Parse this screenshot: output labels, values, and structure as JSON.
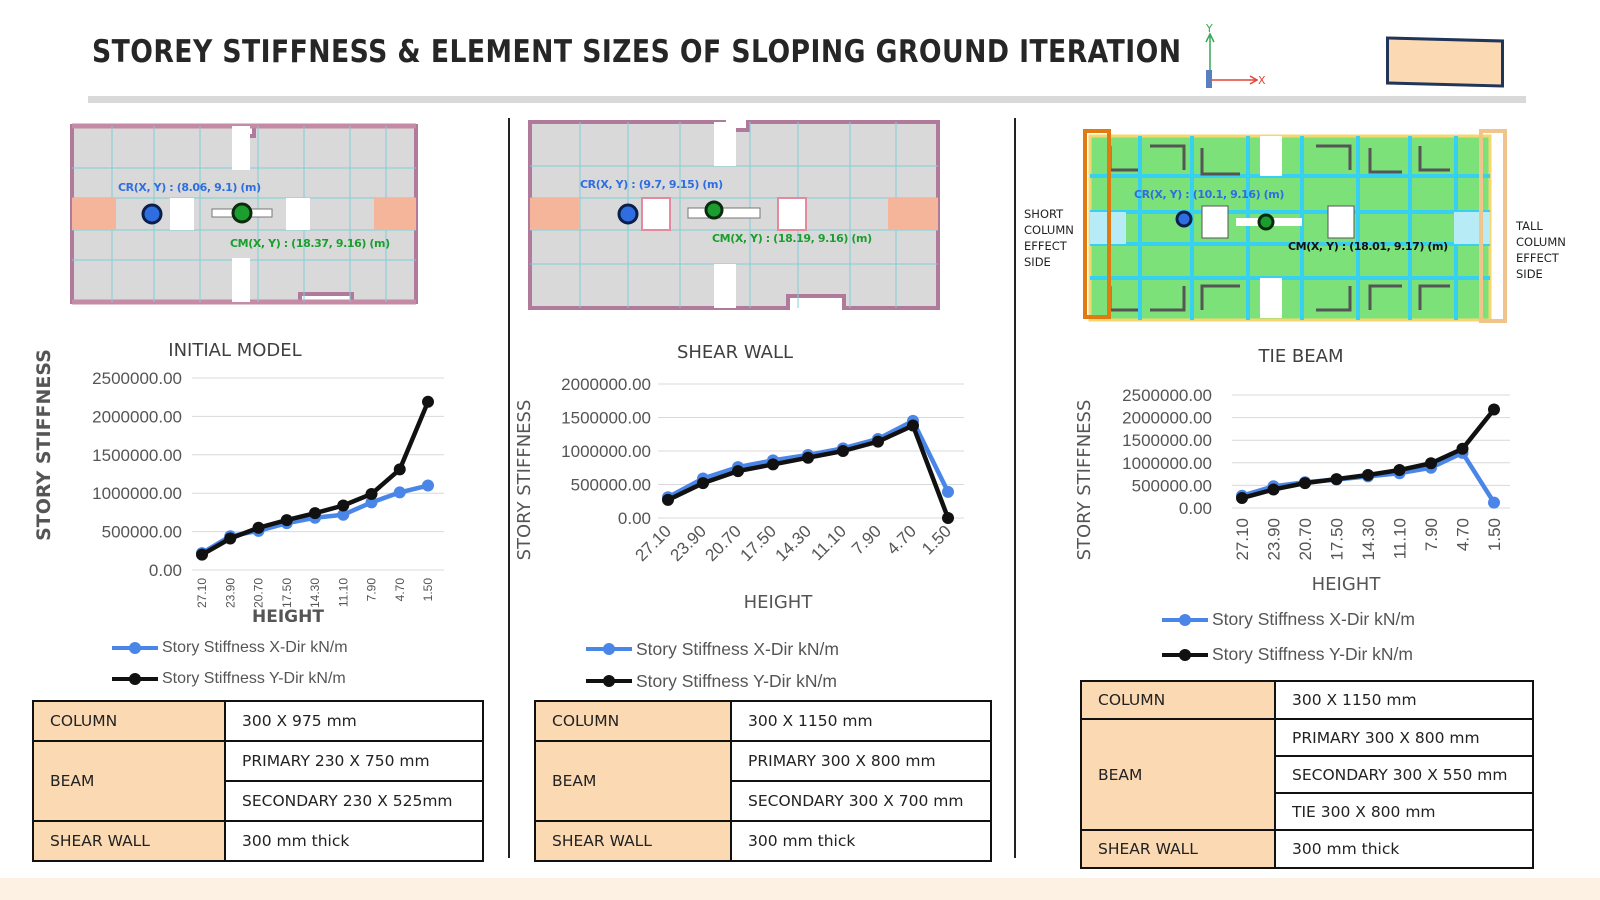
{
  "title": "STOREY STIFFNESS & ELEMENT SIZES OF SLOPING GROUND ITERATION",
  "axis_icon": {
    "y": "Y",
    "x": "X"
  },
  "colors": {
    "x_series": "#4a86e8",
    "y_series": "#111111",
    "key_cell": "#fad9b3",
    "legend_box": "#fad9b3",
    "cr_marker": "#2f6ee0",
    "cm_marker": "#1b9e2e"
  },
  "panels": [
    {
      "chart_title": "INITIAL MODEL",
      "cr_text": "CR(X, Y) : (8.06, 9.1) (m)",
      "cm_text": "CM(X, Y) : (18.37, 9.16) (m)",
      "ylabel": "STORY STIFFNESS",
      "xlabel": "HEIGHT",
      "legend": [
        "Story Stiffness X-Dir kN/m",
        "Story Stiffness Y-Dir kN/m"
      ],
      "table": {
        "column_key": "COLUMN",
        "column_val": "300 X 975 mm",
        "beam_key": "BEAM",
        "beam_vals": [
          "PRIMARY 230 X 750 mm",
          "SECONDARY 230 X 525mm"
        ],
        "wall_key": "SHEAR WALL",
        "wall_val": "300 mm thick"
      }
    },
    {
      "chart_title": "SHEAR WALL",
      "cr_text": "CR(X, Y) : (9.7, 9.15) (m)",
      "cm_text": "CM(X, Y) : (18.19, 9.16) (m)",
      "ylabel": "STORY STIFFNESS",
      "xlabel": "HEIGHT",
      "legend": [
        "Story Stiffness X-Dir kN/m",
        "Story Stiffness Y-Dir kN/m"
      ],
      "table": {
        "column_key": "COLUMN",
        "column_val": "300 X 1150 mm",
        "beam_key": "BEAM",
        "beam_vals": [
          "PRIMARY 300 X 800 mm",
          "SECONDARY 300 X 700 mm"
        ],
        "wall_key": "SHEAR WALL",
        "wall_val": "300 mm thick"
      }
    },
    {
      "chart_title": "TIE BEAM",
      "cr_text": "CR(X, Y) : (10.1, 9.16) (m)",
      "cm_text": "CM(X, Y) : (18.01, 9.17) (m)",
      "left_note": "SHORT COLUMN EFFECT SIDE",
      "right_note": "TALL COLUMN EFFECT SIDE",
      "ylabel": "STORY STIFFNESS",
      "xlabel": "HEIGHT",
      "legend": [
        "Story Stiffness X-Dir kN/m",
        "Story Stiffness Y-Dir kN/m"
      ],
      "table": {
        "column_key": "COLUMN",
        "column_val": "300 X 1150 mm",
        "beam_key": "BEAM",
        "beam_vals": [
          "PRIMARY 300 X 800 mm",
          "SECONDARY 300 X 550 mm",
          "TIE 300 X 800 mm"
        ],
        "wall_key": "SHEAR WALL",
        "wall_val": "300 mm thick"
      }
    }
  ],
  "chart_data": [
    {
      "type": "line",
      "title": "INITIAL MODEL",
      "xlabel": "HEIGHT",
      "ylabel": "STORY STIFFNESS",
      "categories": [
        "27.10",
        "23.90",
        "20.70",
        "17.50",
        "14.30",
        "11.10",
        "7.90",
        "4.70",
        "1.50"
      ],
      "yticks": [
        "0.00",
        "500000.00",
        "1000000.00",
        "1500000.00",
        "2000000.00",
        "2500000.00"
      ],
      "ylim": [
        0,
        2500000
      ],
      "grid": true,
      "legend_position": "bottom",
      "series": [
        {
          "name": "Story Stiffness X-Dir kN/m",
          "values": [
            220000,
            440000,
            510000,
            610000,
            680000,
            720000,
            880000,
            1010000,
            1100000
          ]
        },
        {
          "name": "Story Stiffness Y-Dir kN/m",
          "values": [
            200000,
            410000,
            550000,
            650000,
            740000,
            840000,
            990000,
            1310000,
            2190000
          ]
        }
      ]
    },
    {
      "type": "line",
      "title": "SHEAR WALL",
      "xlabel": "HEIGHT",
      "ylabel": "STORY STIFFNESS",
      "categories": [
        "27.10",
        "23.90",
        "20.70",
        "17.50",
        "14.30",
        "11.10",
        "7.90",
        "4.70",
        "1.50"
      ],
      "yticks": [
        "0.00",
        "500000.00",
        "1000000.00",
        "1500000.00",
        "2000000.00"
      ],
      "ylim": [
        0,
        2000000
      ],
      "grid": true,
      "legend_position": "bottom",
      "series": [
        {
          "name": "Story Stiffness X-Dir kN/m",
          "values": [
            310000,
            590000,
            760000,
            860000,
            940000,
            1040000,
            1180000,
            1450000,
            390000
          ]
        },
        {
          "name": "Story Stiffness Y-Dir kN/m",
          "values": [
            270000,
            520000,
            700000,
            800000,
            900000,
            1000000,
            1140000,
            1380000,
            0
          ]
        }
      ]
    },
    {
      "type": "line",
      "title": "TIE BEAM",
      "xlabel": "HEIGHT",
      "ylabel": "STORY STIFFNESS",
      "categories": [
        "27.10",
        "23.90",
        "20.70",
        "17.50",
        "14.30",
        "11.10",
        "7.90",
        "4.70",
        "1.50"
      ],
      "yticks": [
        "0.00",
        "500000.00",
        "1000000.00",
        "1500000.00",
        "2000000.00",
        "2500000.00"
      ],
      "ylim": [
        0,
        2500000
      ],
      "grid": true,
      "legend_position": "bottom",
      "series": [
        {
          "name": "Story Stiffness X-Dir kN/m",
          "values": [
            270000,
            480000,
            570000,
            630000,
            700000,
            770000,
            890000,
            1220000,
            120000
          ]
        },
        {
          "name": "Story Stiffness Y-Dir kN/m",
          "values": [
            220000,
            410000,
            550000,
            640000,
            730000,
            840000,
            990000,
            1310000,
            2180000
          ]
        }
      ]
    }
  ]
}
